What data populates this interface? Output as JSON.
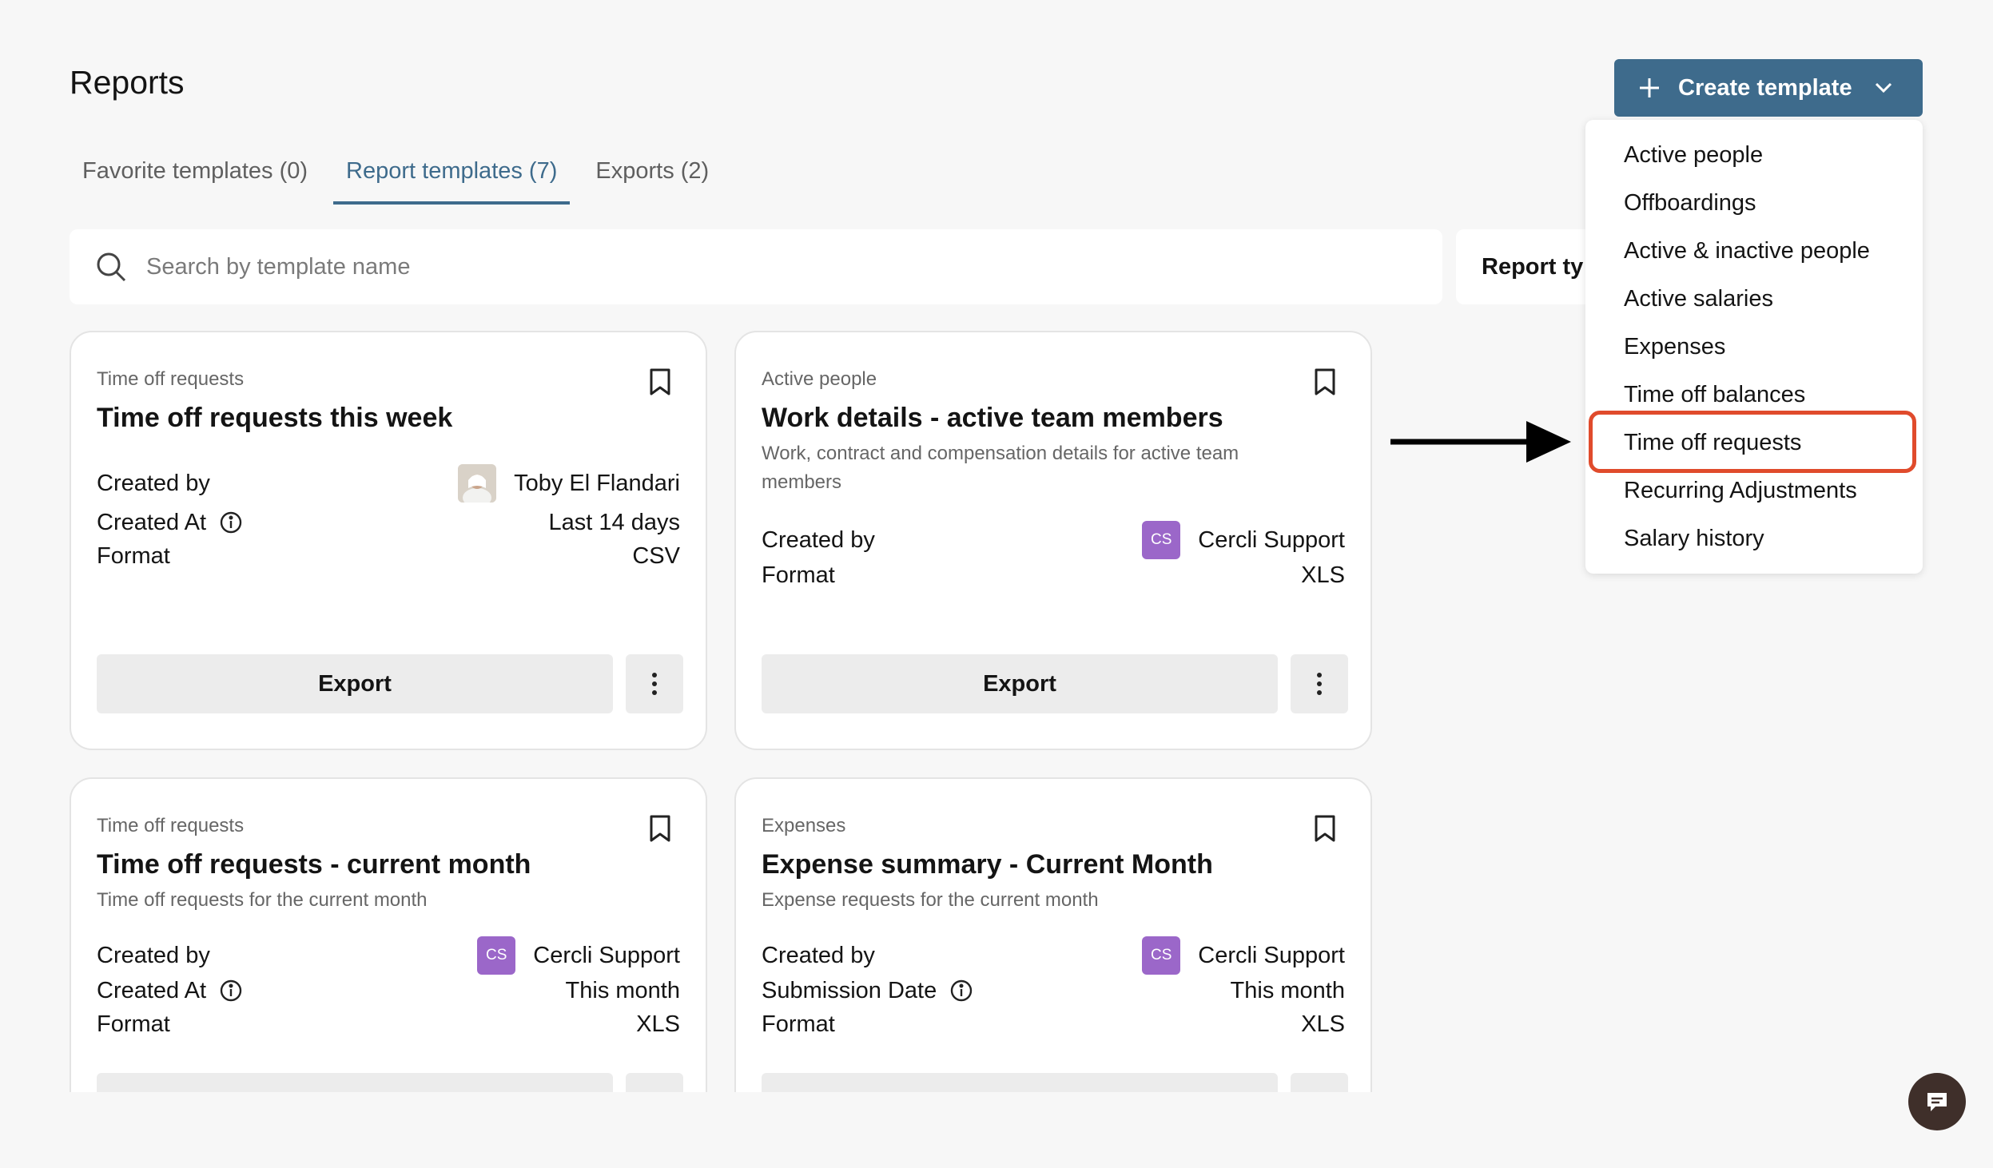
{
  "page": {
    "title": "Reports"
  },
  "tabs": [
    {
      "label": "Favorite templates (0)"
    },
    {
      "label": "Report templates (7)"
    },
    {
      "label": "Exports (2)"
    }
  ],
  "search": {
    "placeholder": "Search by template name",
    "value": ""
  },
  "filter": {
    "report_type_label": "Report ty"
  },
  "create_button": {
    "label": "Create template"
  },
  "dropdown": {
    "items": [
      "Active people",
      "Offboardings",
      "Active & inactive people",
      "Active salaries",
      "Expenses",
      "Time off balances",
      "Time off requests",
      "Recurring Adjustments",
      "Salary history"
    ],
    "highlighted": "Time off requests"
  },
  "cards": [
    {
      "category": "Time off requests",
      "title": "Time off requests this week",
      "description": "",
      "created_by_label": "Created by",
      "created_by": "Toby El Flandari",
      "date_label": "Created At",
      "date_value": "Last 14 days",
      "format_label": "Format",
      "format": "CSV",
      "export_label": "Export"
    },
    {
      "category": "Active people",
      "title": "Work details - active team members",
      "description": "Work, contract and compensation details for active team members",
      "created_by_label": "Created by",
      "created_by": "Cercli Support",
      "avatar_initials": "CS",
      "format_label": "Format",
      "format": "XLS",
      "export_label": "Export"
    },
    {
      "category": "Time off requests",
      "title": "Time off requests - current month",
      "description": "Time off requests for the current month",
      "created_by_label": "Created by",
      "created_by": "Cercli Support",
      "avatar_initials": "CS",
      "date_label": "Created At",
      "date_value": "This month",
      "format_label": "Format",
      "format": "XLS"
    },
    {
      "category": "Expenses",
      "title": "Expense summary - Current Month",
      "description": "Expense requests for the current month",
      "created_by_label": "Created by",
      "created_by": "Cercli Support",
      "avatar_initials": "CS",
      "date_label": "Submission Date",
      "date_value": "This month",
      "format_label": "Format",
      "format": "XLS"
    }
  ],
  "colors": {
    "accent": "#3e6b8c",
    "highlight_border": "#e04b2c",
    "avatar_cs": "#9b67c9",
    "chat_button": "#3f2f2a"
  },
  "icons": [
    "search-icon",
    "bookmark-icon",
    "info-icon",
    "more-vertical-icon",
    "plus-icon",
    "chevron-down-icon",
    "chat-icon",
    "arrow-right-icon"
  ]
}
